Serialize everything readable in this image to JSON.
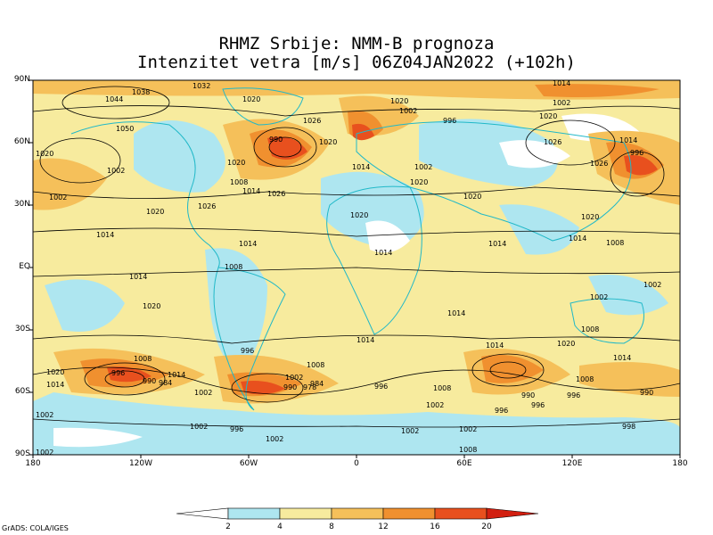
{
  "title_line1": "RHMZ Srbije: NMM-B prognoza",
  "title_line2": "Intenzitet vetra [m/s] 06Z04JAN2022 (+102h)",
  "lat_labels": [
    "90N",
    "60N",
    "30N",
    "EQ",
    "30S",
    "60S",
    "90S"
  ],
  "lon_labels": [
    "180",
    "120W",
    "60W",
    "0",
    "60E",
    "120E",
    "180"
  ],
  "colorbar": {
    "labels": [
      "2",
      "4",
      "8",
      "12",
      "16",
      "20"
    ],
    "colors": [
      "#ffffff",
      "#aee6f0",
      "#f7eb9e",
      "#f5c05a",
      "#f0902f",
      "#e8501e",
      "#d21f10"
    ]
  },
  "pressure_labels": [
    "1044",
    "1038",
    "1032",
    "1026",
    "1020",
    "1014",
    "1008",
    "1002",
    "996",
    "990",
    "984",
    "978",
    "1050"
  ],
  "credit": "GrADS: COLA/IGES"
}
